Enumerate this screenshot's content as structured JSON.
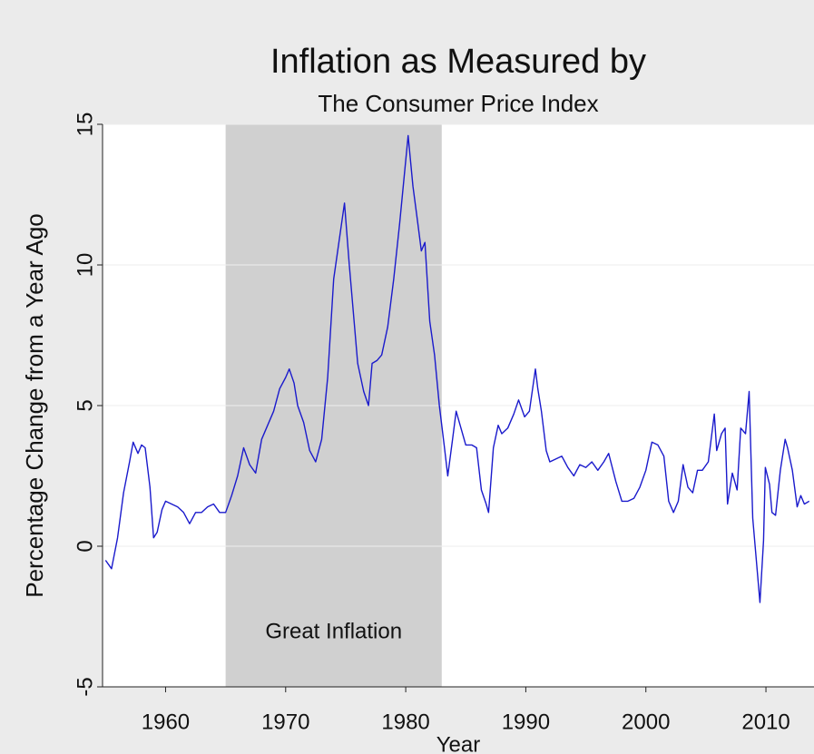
{
  "chart_data": {
    "type": "line",
    "title": "Inflation as Measured by",
    "subtitle": "The Consumer Price Index",
    "xlabel": "Year",
    "ylabel": "Percentage Change from a Year Ago",
    "color": "#1a1acc",
    "shaded_region": {
      "x": [
        1965,
        1983
      ],
      "label": "Great Inflation",
      "color": "#d0d0d0"
    },
    "xlim": [
      1954.75,
      2013.7
    ],
    "xticks": [
      1960,
      1970,
      1980,
      1990,
      2000,
      2010
    ],
    "ylim": [
      -5,
      15
    ],
    "yticks": [
      -5,
      0,
      5,
      10,
      15
    ],
    "grid": true,
    "x": [
      1955.0,
      1955.5,
      1956.0,
      1956.5,
      1957.0,
      1957.3,
      1957.7,
      1958.0,
      1958.3,
      1958.7,
      1959.0,
      1959.3,
      1959.7,
      1960.0,
      1960.5,
      1961.0,
      1961.5,
      1962.0,
      1962.5,
      1963.0,
      1963.5,
      1964.0,
      1964.5,
      1965.0,
      1965.5,
      1966.0,
      1966.5,
      1967.0,
      1967.5,
      1968.0,
      1968.5,
      1969.0,
      1969.5,
      1970.0,
      1970.3,
      1970.7,
      1971.0,
      1971.5,
      1972.0,
      1972.5,
      1973.0,
      1973.5,
      1974.0,
      1974.5,
      1974.9,
      1975.3,
      1975.7,
      1976.0,
      1976.5,
      1976.9,
      1977.2,
      1977.6,
      1978.0,
      1978.5,
      1979.0,
      1979.5,
      1980.2,
      1980.6,
      1981.0,
      1981.3,
      1981.6,
      1982.0,
      1982.4,
      1982.8,
      1983.2,
      1983.5,
      1983.9,
      1984.2,
      1984.6,
      1985.0,
      1985.5,
      1985.9,
      1986.3,
      1986.7,
      1986.9,
      1987.3,
      1987.7,
      1988.0,
      1988.5,
      1989.0,
      1989.4,
      1989.9,
      1990.3,
      1990.8,
      1991.0,
      1991.3,
      1991.7,
      1992.0,
      1992.5,
      1993.0,
      1993.5,
      1994.0,
      1994.5,
      1995.0,
      1995.5,
      1996.0,
      1996.5,
      1996.9,
      1997.5,
      1998.0,
      1998.5,
      1999.0,
      1999.5,
      2000.0,
      2000.5,
      2001.0,
      2001.5,
      2001.9,
      2002.3,
      2002.7,
      2003.1,
      2003.5,
      2003.9,
      2004.3,
      2004.7,
      2005.2,
      2005.7,
      2005.9,
      2006.3,
      2006.6,
      2006.8,
      2007.2,
      2007.6,
      2007.9,
      2008.3,
      2008.6,
      2008.9,
      2009.2,
      2009.5,
      2009.8,
      2009.95,
      2010.3,
      2010.5,
      2010.8,
      2011.2,
      2011.6,
      2011.8,
      2012.2,
      2012.6,
      2012.9,
      2013.2,
      2013.6
    ],
    "values": [
      -0.5,
      -0.8,
      0.3,
      1.9,
      3.0,
      3.7,
      3.3,
      3.6,
      3.5,
      2.1,
      0.3,
      0.5,
      1.3,
      1.6,
      1.5,
      1.4,
      1.2,
      0.8,
      1.2,
      1.2,
      1.4,
      1.5,
      1.2,
      1.2,
      1.8,
      2.5,
      3.5,
      2.9,
      2.6,
      3.8,
      4.3,
      4.8,
      5.6,
      6.0,
      6.3,
      5.8,
      5.0,
      4.4,
      3.4,
      3.0,
      3.8,
      6.0,
      9.5,
      11.0,
      12.2,
      10.0,
      8.0,
      6.5,
      5.5,
      5.0,
      6.5,
      6.6,
      6.8,
      7.8,
      9.5,
      11.5,
      14.6,
      12.8,
      11.5,
      10.5,
      10.8,
      8.0,
      6.8,
      5.0,
      3.6,
      2.5,
      3.8,
      4.8,
      4.2,
      3.6,
      3.6,
      3.5,
      2.0,
      1.5,
      1.2,
      3.5,
      4.3,
      4.0,
      4.2,
      4.7,
      5.2,
      4.6,
      4.8,
      6.3,
      5.6,
      4.8,
      3.4,
      3.0,
      3.1,
      3.2,
      2.8,
      2.5,
      2.9,
      2.8,
      3.0,
      2.7,
      3.0,
      3.3,
      2.3,
      1.6,
      1.6,
      1.7,
      2.1,
      2.7,
      3.7,
      3.6,
      3.2,
      1.6,
      1.2,
      1.6,
      2.9,
      2.1,
      1.9,
      2.7,
      2.7,
      3.0,
      4.7,
      3.4,
      4.0,
      4.2,
      1.5,
      2.6,
      2.0,
      4.2,
      4.0,
      5.5,
      1.0,
      -0.5,
      -2.0,
      0.2,
      2.8,
      2.2,
      1.2,
      1.1,
      2.7,
      3.8,
      3.5,
      2.7,
      1.4,
      1.8,
      1.5,
      1.6
    ]
  }
}
